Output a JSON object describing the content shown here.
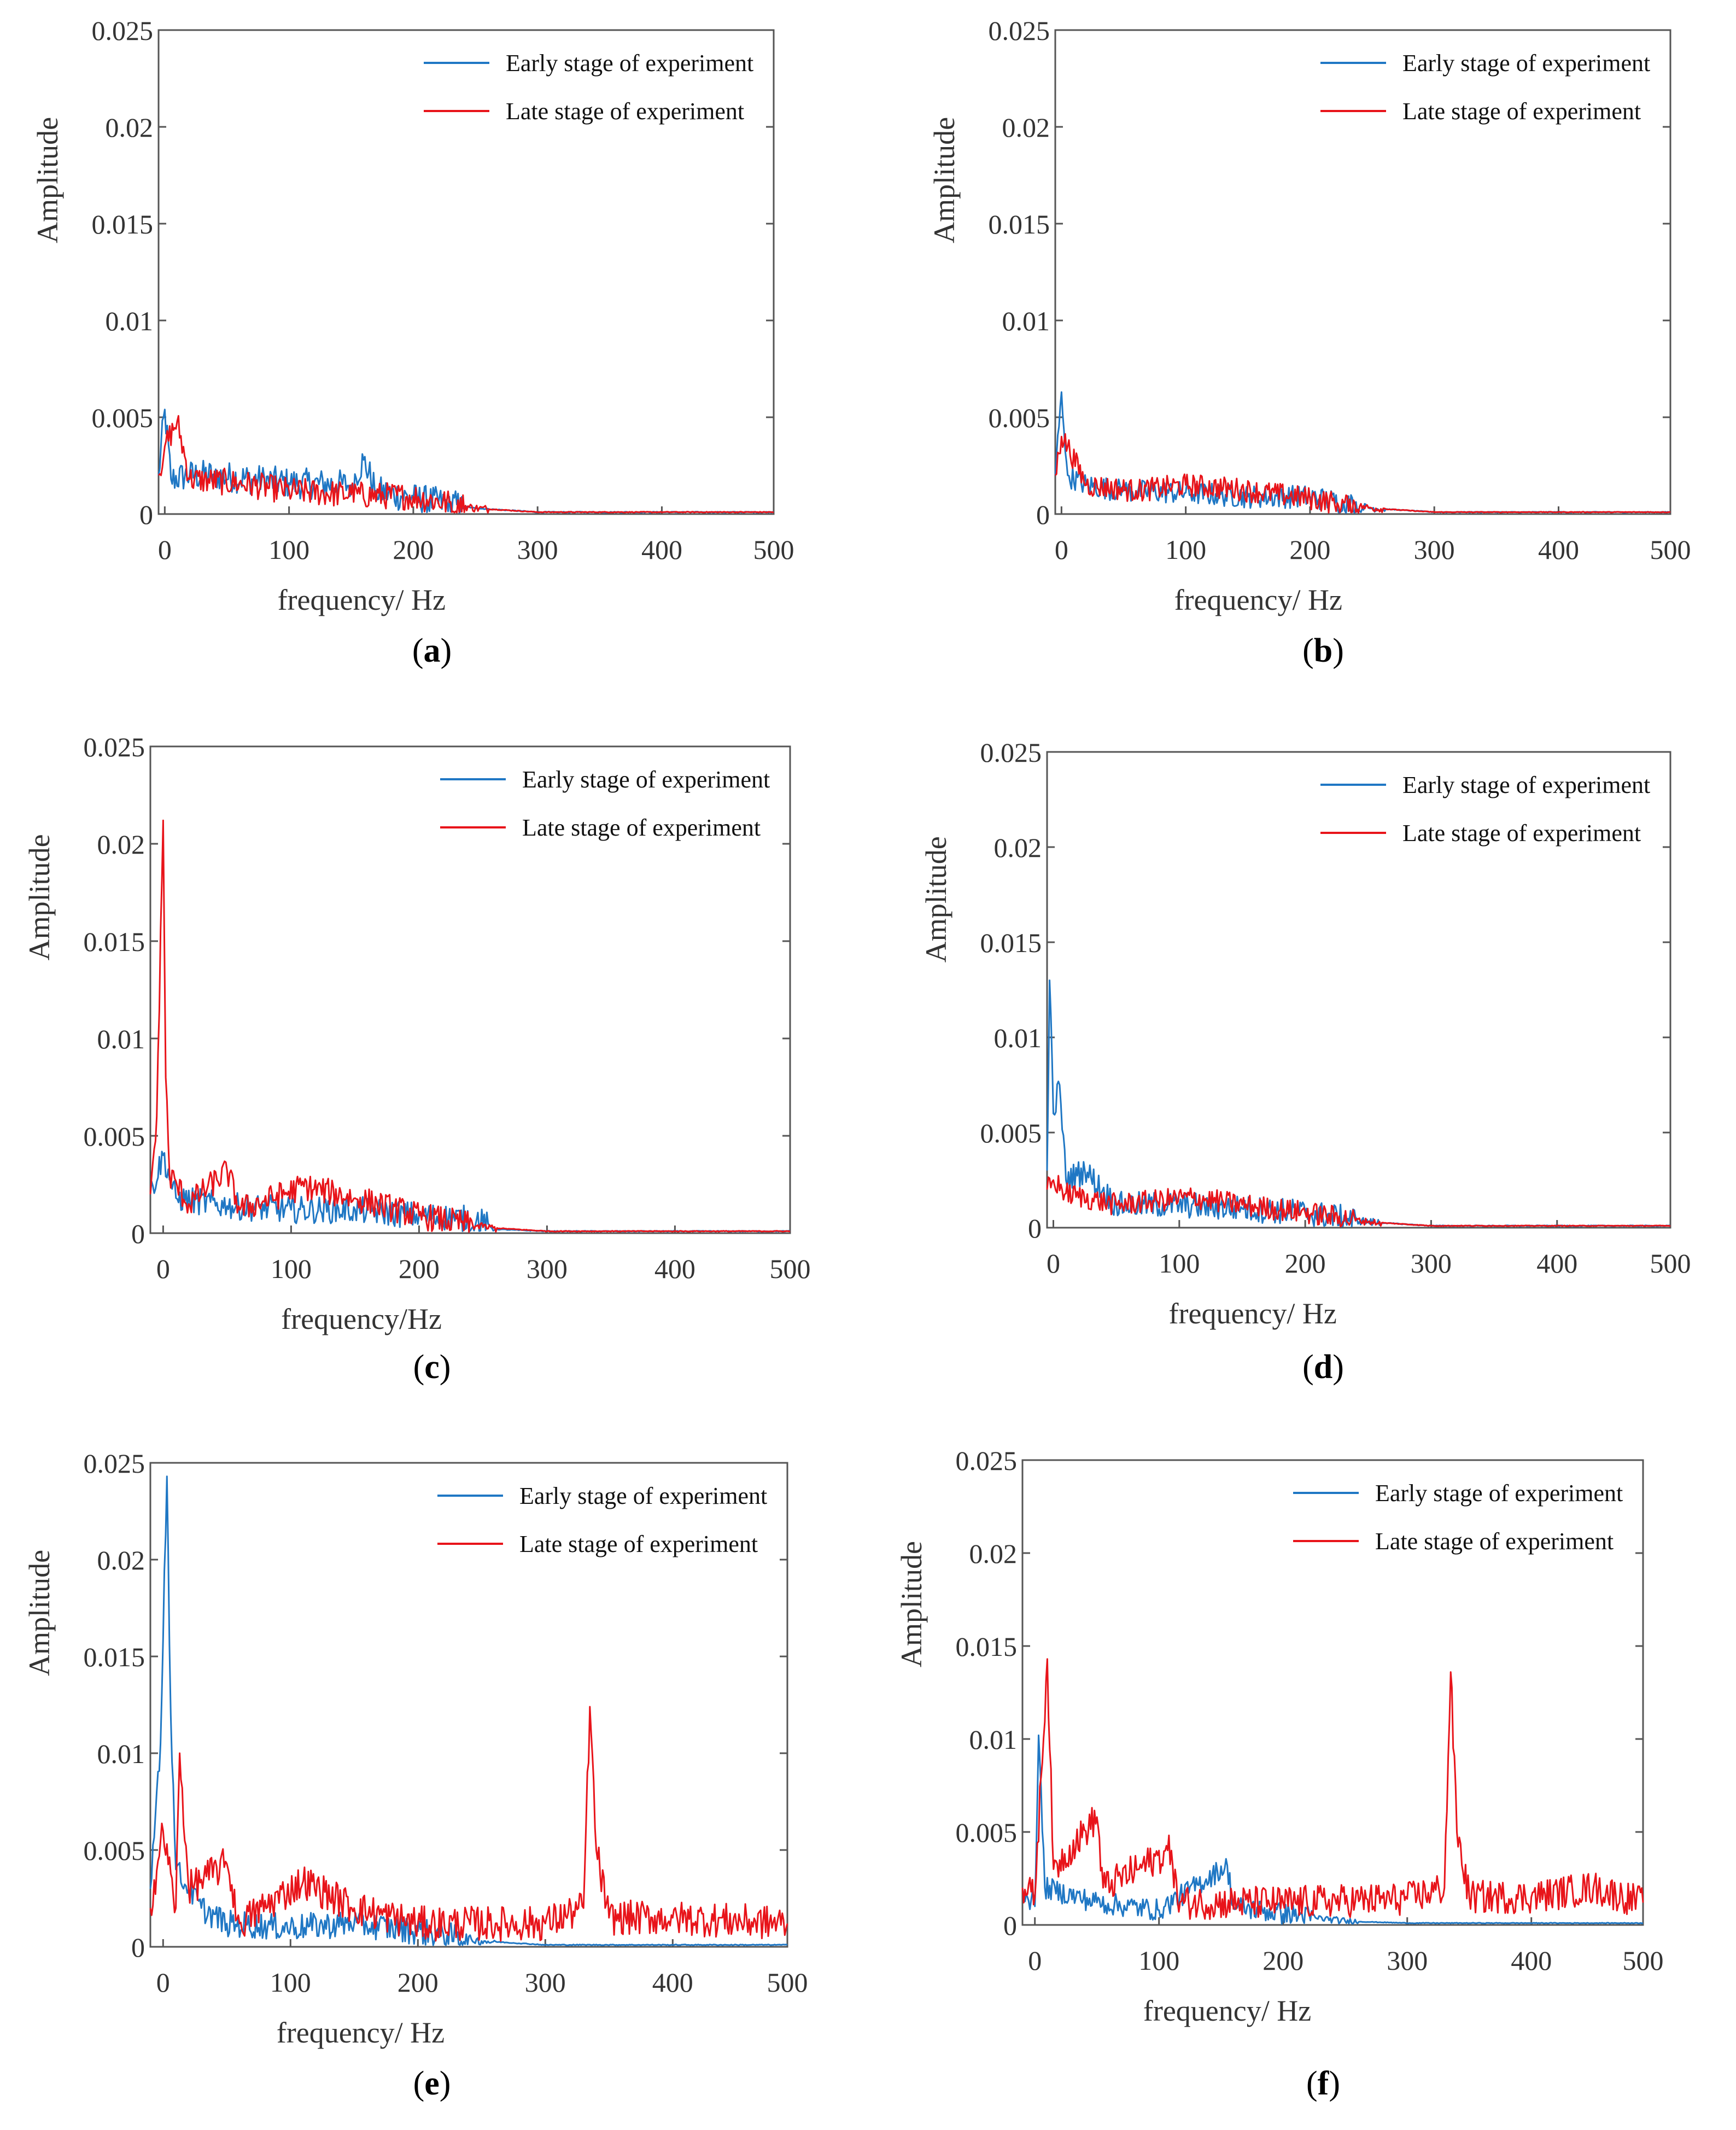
{
  "colors": {
    "early": "#1f77c4",
    "late": "#e8141a",
    "axis": "#555555",
    "text": "#333333"
  },
  "panels": [
    {
      "label": "a",
      "title": "",
      "xlabel": "frequency/ Hz",
      "ylabel": "Amplitude"
    },
    {
      "label": "b",
      "title": "",
      "xlabel": "frequency/ Hz",
      "ylabel": "Amplitude"
    },
    {
      "label": "c",
      "title": "",
      "xlabel": "frequency/Hz",
      "ylabel": "Amplitude"
    },
    {
      "label": "d",
      "title": "",
      "xlabel": "frequency/ Hz",
      "ylabel": "Amplitude"
    },
    {
      "label": "e",
      "title": "",
      "xlabel": "frequency/ Hz",
      "ylabel": "Amplitude"
    },
    {
      "label": "f",
      "title": "",
      "xlabel": "frequency/ Hz",
      "ylabel": "Amplitude"
    }
  ],
  "chart_data": [
    {
      "type": "line",
      "panel": "a",
      "xlim": [
        -5,
        490
      ],
      "ylim": [
        0,
        0.025
      ],
      "xticks": [
        "0",
        "100",
        "200",
        "300",
        "400",
        "500"
      ],
      "yticks": [
        "0",
        "0.005",
        "0.01",
        "0.015",
        "0.02",
        "0.025"
      ],
      "legend": [
        "Early stage of experiment",
        "Late stage of experiment"
      ],
      "legend_position": "top-right",
      "series": [
        {
          "name": "Early stage of experiment",
          "color": "#1f77c4",
          "noise": 0.0008,
          "decay_to": 240,
          "anchors": [
            [
              -5,
              0.002
            ],
            [
              0,
              0.0054
            ],
            [
              5,
              0.0018
            ],
            [
              20,
              0.002
            ],
            [
              40,
              0.002
            ],
            [
              70,
              0.0018
            ],
            [
              100,
              0.0016
            ],
            [
              150,
              0.0015
            ],
            [
              160,
              0.0028
            ],
            [
              170,
              0.0012
            ],
            [
              200,
              0.0008
            ],
            [
              250,
              0.0003
            ],
            [
              300,
              0.0001
            ],
            [
              490,
              0.0001
            ]
          ]
        },
        {
          "name": "Late stage of experiment",
          "color": "#e8141a",
          "noise": 0.0007,
          "decay_to": 260,
          "anchors": [
            [
              -5,
              0.002
            ],
            [
              0,
              0.0035
            ],
            [
              10,
              0.0048
            ],
            [
              20,
              0.0018
            ],
            [
              60,
              0.0016
            ],
            [
              100,
              0.0012
            ],
            [
              150,
              0.001
            ],
            [
              200,
              0.0009
            ],
            [
              250,
              0.0003
            ],
            [
              300,
              0.0001
            ],
            [
              490,
              0.0001
            ]
          ]
        }
      ]
    },
    {
      "type": "line",
      "panel": "b",
      "xlim": [
        -5,
        490
      ],
      "ylim": [
        0,
        0.025
      ],
      "xticks": [
        "0",
        "100",
        "200",
        "300",
        "400",
        "500"
      ],
      "yticks": [
        "0",
        "0.005",
        "0.01",
        "0.015",
        "0.02",
        "0.025"
      ],
      "legend": [
        "Early stage of experiment",
        "Late stage of experiment"
      ],
      "legend_position": "top-right",
      "series": [
        {
          "name": "Early stage of experiment",
          "color": "#1f77c4",
          "noise": 0.0006,
          "decay_to": 260,
          "anchors": [
            [
              -5,
              0.002
            ],
            [
              0,
              0.0063
            ],
            [
              5,
              0.002
            ],
            [
              20,
              0.0015
            ],
            [
              50,
              0.0012
            ],
            [
              100,
              0.0011
            ],
            [
              150,
              0.0009
            ],
            [
              200,
              0.0009
            ],
            [
              250,
              0.0003
            ],
            [
              300,
              0.0001
            ],
            [
              490,
              0.0001
            ]
          ]
        },
        {
          "name": "Late stage of experiment",
          "color": "#e8141a",
          "noise": 0.0006,
          "decay_to": 260,
          "anchors": [
            [
              -5,
              0.002
            ],
            [
              0,
              0.004
            ],
            [
              5,
              0.0035
            ],
            [
              20,
              0.0015
            ],
            [
              60,
              0.0012
            ],
            [
              100,
              0.0015
            ],
            [
              140,
              0.0013
            ],
            [
              200,
              0.0008
            ],
            [
              250,
              0.0003
            ],
            [
              300,
              0.0001
            ],
            [
              490,
              0.0001
            ]
          ]
        }
      ]
    },
    {
      "type": "line",
      "panel": "c",
      "xlim": [
        -10,
        490
      ],
      "ylim": [
        0,
        0.025
      ],
      "xticks": [
        "0",
        "100",
        "200",
        "300",
        "400",
        "500"
      ],
      "yticks": [
        "0",
        "0.005",
        "0.01",
        "0.015",
        "0.02",
        "0.025"
      ],
      "legend": [
        "Early stage of experiment",
        "Late stage of experiment"
      ],
      "legend_position": "top-right",
      "series": [
        {
          "name": "Early stage of experiment",
          "color": "#1f77c4",
          "noise": 0.0007,
          "decay_to": 260,
          "anchors": [
            [
              -10,
              0.002
            ],
            [
              0,
              0.004
            ],
            [
              10,
              0.0018
            ],
            [
              50,
              0.0014
            ],
            [
              100,
              0.0012
            ],
            [
              150,
              0.0012
            ],
            [
              200,
              0.0009
            ],
            [
              245,
              0.0007
            ],
            [
              260,
              0.0002
            ],
            [
              300,
              0.0001
            ],
            [
              490,
              0.0001
            ]
          ]
        },
        {
          "name": "Late stage of experiment",
          "color": "#e8141a",
          "noise": 0.0007,
          "decay_to": 260,
          "anchors": [
            [
              -10,
              0.002
            ],
            [
              -5,
              0.006
            ],
            [
              0,
              0.0212
            ],
            [
              2,
              0.008
            ],
            [
              5,
              0.003
            ],
            [
              20,
              0.0015
            ],
            [
              50,
              0.0032
            ],
            [
              60,
              0.0012
            ],
            [
              110,
              0.0024
            ],
            [
              150,
              0.0018
            ],
            [
              200,
              0.0009
            ],
            [
              250,
              0.0003
            ],
            [
              300,
              0.0001
            ],
            [
              490,
              0.0001
            ]
          ]
        }
      ]
    },
    {
      "type": "line",
      "panel": "d",
      "xlim": [
        -5,
        490
      ],
      "ylim": [
        0,
        0.025
      ],
      "xticks": [
        "0",
        "100",
        "200",
        "300",
        "400",
        "500"
      ],
      "yticks": [
        "0",
        "0.005",
        "0.01",
        "0.015",
        "0.02",
        "0.025"
      ],
      "legend": [
        "Early stage of experiment",
        "Late stage of experiment"
      ],
      "legend_position": "top-right",
      "series": [
        {
          "name": "Early stage of experiment",
          "color": "#1f77c4",
          "noise": 0.0007,
          "decay_to": 260,
          "anchors": [
            [
              -5,
              0.003
            ],
            [
              -3,
              0.013
            ],
            [
              0,
              0.006
            ],
            [
              5,
              0.0075
            ],
            [
              10,
              0.0025
            ],
            [
              25,
              0.003
            ],
            [
              50,
              0.0012
            ],
            [
              100,
              0.0012
            ],
            [
              150,
              0.001
            ],
            [
              200,
              0.0008
            ],
            [
              250,
              0.0003
            ],
            [
              300,
              0.0001
            ],
            [
              490,
              0.0001
            ]
          ]
        },
        {
          "name": "Late stage of experiment",
          "color": "#e8141a",
          "noise": 0.0006,
          "decay_to": 260,
          "anchors": [
            [
              -5,
              0.002
            ],
            [
              0,
              0.0025
            ],
            [
              10,
              0.0018
            ],
            [
              50,
              0.0012
            ],
            [
              110,
              0.0016
            ],
            [
              150,
              0.0012
            ],
            [
              200,
              0.0008
            ],
            [
              250,
              0.0003
            ],
            [
              300,
              0.0001
            ],
            [
              490,
              0.0001
            ]
          ]
        }
      ]
    },
    {
      "type": "line",
      "panel": "e",
      "xlim": [
        -10,
        490
      ],
      "ylim": [
        0,
        0.025
      ],
      "xticks": [
        "0",
        "100",
        "200",
        "300",
        "400",
        "500"
      ],
      "yticks": [
        "0",
        "0.005",
        "0.01",
        "0.015",
        "0.02",
        "0.025"
      ],
      "legend": [
        "Early stage of experiment",
        "Late stage of experiment"
      ],
      "legend_position": "top-right",
      "series": [
        {
          "name": "Early stage of experiment",
          "color": "#1f77c4",
          "noise": 0.0007,
          "decay_to": 260,
          "anchors": [
            [
              -10,
              0.003
            ],
            [
              -5,
              0.008
            ],
            [
              -2,
              0.0105
            ],
            [
              3,
              0.0243
            ],
            [
              6,
              0.012
            ],
            [
              10,
              0.004
            ],
            [
              30,
              0.002
            ],
            [
              50,
              0.0012
            ],
            [
              100,
              0.001
            ],
            [
              150,
              0.0012
            ],
            [
              200,
              0.0008
            ],
            [
              250,
              0.0003
            ],
            [
              300,
              0.0001
            ],
            [
              490,
              0.0001
            ]
          ]
        },
        {
          "name": "Late stage of experiment",
          "color": "#e8141a",
          "noise": 0.0009,
          "decay_to": 490,
          "anchors": [
            [
              -10,
              0.002
            ],
            [
              0,
              0.006
            ],
            [
              10,
              0.002
            ],
            [
              13,
              0.01
            ],
            [
              20,
              0.003
            ],
            [
              50,
              0.0043
            ],
            [
              60,
              0.0012
            ],
            [
              110,
              0.0034
            ],
            [
              150,
              0.002
            ],
            [
              200,
              0.0012
            ],
            [
              300,
              0.0012
            ],
            [
              330,
              0.002
            ],
            [
              335,
              0.0124
            ],
            [
              340,
              0.005
            ],
            [
              350,
              0.0015
            ],
            [
              400,
              0.0015
            ],
            [
              490,
              0.0012
            ]
          ]
        }
      ]
    },
    {
      "type": "line",
      "panel": "f",
      "xlim": [
        -10,
        490
      ],
      "ylim": [
        0,
        0.025
      ],
      "xticks": [
        "0",
        "100",
        "200",
        "300",
        "400",
        "500"
      ],
      "yticks": [
        "0",
        "0.005",
        "0.01",
        "0.015",
        "0.02",
        "0.025"
      ],
      "legend": [
        "Early stage of experiment",
        "Late stage of experiment"
      ],
      "legend_position": "top-right",
      "series": [
        {
          "name": "Early stage of experiment",
          "color": "#1f77c4",
          "noise": 0.0006,
          "decay_to": 260,
          "anchors": [
            [
              -10,
              0.002
            ],
            [
              0,
              0.001
            ],
            [
              3,
              0.0102
            ],
            [
              8,
              0.002
            ],
            [
              50,
              0.0012
            ],
            [
              100,
              0.0008
            ],
            [
              155,
              0.0032
            ],
            [
              160,
              0.001
            ],
            [
              200,
              0.0006
            ],
            [
              250,
              0.0002
            ],
            [
              300,
              0.0001
            ],
            [
              490,
              0.0001
            ]
          ]
        },
        {
          "name": "Late stage of experiment",
          "color": "#e8141a",
          "noise": 0.0009,
          "decay_to": 490,
          "anchors": [
            [
              -10,
              0.002
            ],
            [
              0,
              0.0015
            ],
            [
              10,
              0.0143
            ],
            [
              15,
              0.003
            ],
            [
              50,
              0.0058
            ],
            [
              55,
              0.002
            ],
            [
              110,
              0.004
            ],
            [
              115,
              0.0012
            ],
            [
              200,
              0.0012
            ],
            [
              300,
              0.0014
            ],
            [
              330,
              0.002
            ],
            [
              335,
              0.0136
            ],
            [
              340,
              0.005
            ],
            [
              350,
              0.0015
            ],
            [
              400,
              0.0015
            ],
            [
              450,
              0.002
            ],
            [
              490,
              0.0012
            ]
          ]
        }
      ]
    }
  ]
}
